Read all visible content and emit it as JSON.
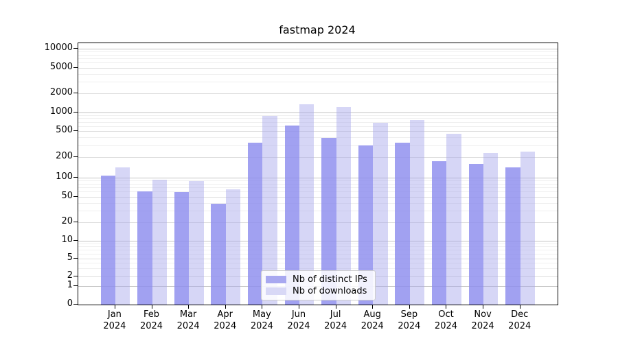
{
  "title": "fastmap 2024",
  "colors": {
    "ips_bar_solid": "#a8a8f0",
    "downloads_bar_solid": "#d8d8f6",
    "ips_fill": "rgba(140,140,238,0.82)",
    "downloads_fill": "rgba(165,165,236,0.45)",
    "grid_major": "#c3c3c3",
    "grid_mid": "#dddddd",
    "grid_minor": "#efefef",
    "axis": "#000000"
  },
  "legend": {
    "items": [
      {
        "label": "Nb of distinct IPs",
        "series": "ips"
      },
      {
        "label": "Nb of downloads",
        "series": "downloads"
      }
    ]
  },
  "chart_data": {
    "type": "bar",
    "title": "fastmap 2024",
    "months": [
      "Jan",
      "Feb",
      "Mar",
      "Apr",
      "May",
      "Jun",
      "Jul",
      "Aug",
      "Sep",
      "Oct",
      "Nov",
      "Dec"
    ],
    "year": "2024",
    "categories": [
      "Jan 2024",
      "Feb 2024",
      "Mar 2024",
      "Apr 2024",
      "May 2024",
      "Jun 2024",
      "Jul 2024",
      "Aug 2024",
      "Sep 2024",
      "Oct 2024",
      "Nov 2024",
      "Dec 2024"
    ],
    "series": [
      {
        "name": "Nb of distinct IPs",
        "values": [
          108,
          61,
          59,
          39,
          330,
          610,
          390,
          300,
          330,
          175,
          159,
          141
        ]
      },
      {
        "name": "Nb of downloads",
        "values": [
          143,
          93,
          88,
          65,
          880,
          1350,
          1200,
          680,
          755,
          450,
          230,
          245
        ]
      }
    ],
    "yscale": "symlog",
    "yticks": [
      0,
      1,
      2,
      5,
      10,
      20,
      50,
      100,
      200,
      500,
      1000,
      2000,
      5000,
      10000
    ],
    "ylim": [
      0,
      12000
    ],
    "xlabel": "",
    "ylabel": "",
    "grid": true,
    "legend_position": "lower center"
  }
}
